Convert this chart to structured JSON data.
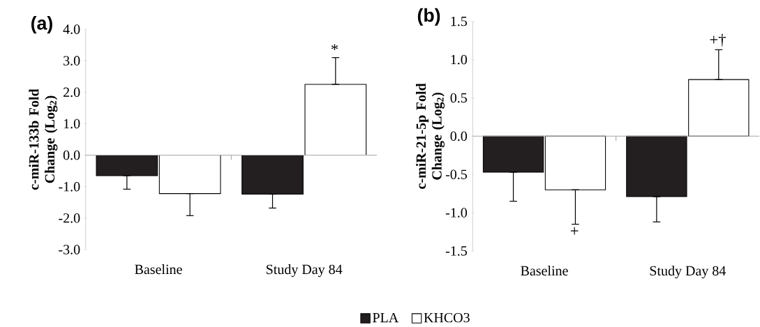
{
  "chart_data": [
    {
      "type": "bar",
      "title": "(a)",
      "ylabel": "c-miR-133b Fold Change (Log$_{2}$)",
      "categories": [
        "Baseline",
        "Study Day 84"
      ],
      "series": [
        {
          "name": "PLA",
          "color": "#231f20",
          "values": [
            -0.65,
            -1.24
          ],
          "errors": [
            [
              -1.08,
              -0.65
            ],
            [
              -1.68,
              -1.24
            ]
          ]
        },
        {
          "name": "KHCO3",
          "color": "#ffffff",
          "values": [
            -1.22,
            2.25
          ],
          "errors": [
            [
              -1.92,
              -1.22
            ],
            [
              2.25,
              3.1
            ]
          ]
        }
      ],
      "ylim": [
        -3,
        4
      ],
      "yticks": [
        {
          "value": -3,
          "label": "-3.0"
        },
        {
          "value": -2,
          "label": "-2.0"
        },
        {
          "value": -1,
          "label": "-1.0"
        },
        {
          "value": 0,
          "label": "0.0"
        },
        {
          "value": 1,
          "label": "1.0"
        },
        {
          "value": 2,
          "label": "2.0"
        },
        {
          "value": 3,
          "label": "3.0"
        },
        {
          "value": 4,
          "label": "4.0"
        }
      ],
      "annotations": [
        "*"
      ],
      "legend": "bottom"
    },
    {
      "type": "bar",
      "title": "(b)",
      "ylabel": "c-miR-21-5p Fold Change (Log$_{2}$)",
      "categories": [
        "Baseline",
        "Study Day 84"
      ],
      "series": [
        {
          "color": "#231f20",
          "values": [
            -0.47,
            -0.79
          ],
          "errors": [
            [
              -0.85,
              -0.47
            ],
            [
              -1.12,
              -0.79
            ]
          ]
        },
        {
          "color": "#ffffff",
          "values": [
            -0.7,
            0.74
          ],
          "errors": [
            [
              -1.15,
              -0.7
            ],
            [
              0.74,
              1.13
            ]
          ]
        }
      ],
      "ylim": [
        -1.5,
        1.5
      ],
      "yticks": [
        {
          "value": -1.5,
          "label": "-1.5"
        },
        {
          "value": -1,
          "label": "-1.0"
        },
        {
          "value": -0.5,
          "label": "-0.5"
        },
        {
          "value": 0,
          "label": "0.0"
        },
        {
          "value": 0.5,
          "label": "0.5"
        },
        {
          "value": 1,
          "label": "1.0"
        },
        {
          "value": 1.5,
          "label": "1.5"
        }
      ],
      "annotations": [
        "+",
        "+†"
      ]
    }
  ]
}
